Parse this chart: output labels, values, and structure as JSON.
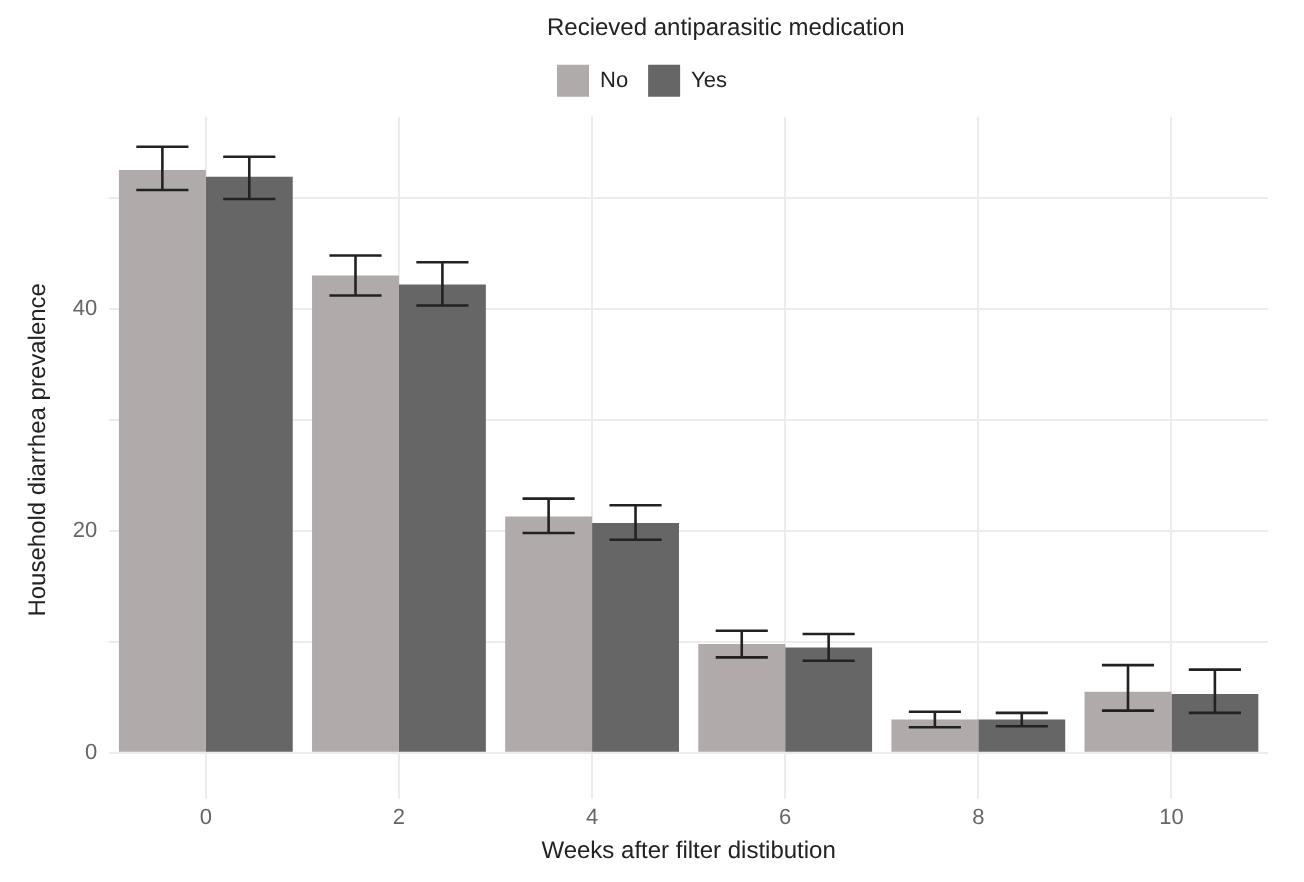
{
  "chart_data": {
    "type": "bar",
    "xlabel": "Weeks after filter distibution",
    "ylabel": "Household diarrhea prevalence",
    "legend_title": "Recieved antiparasitic medication",
    "legend": "top",
    "categories": [
      "0",
      "2",
      "4",
      "6",
      "8",
      "10"
    ],
    "series": [
      {
        "name": "No",
        "color": "#b0aaaa",
        "values": [
          52.5,
          43.0,
          21.3,
          9.8,
          3.0,
          5.5
        ],
        "errors": [
          [
            50.7,
            54.6
          ],
          [
            41.2,
            44.8
          ],
          [
            19.8,
            22.9
          ],
          [
            8.6,
            11.0
          ],
          [
            2.3,
            3.7
          ],
          [
            3.8,
            7.9
          ]
        ]
      },
      {
        "name": "Yes",
        "color": "#666666",
        "values": [
          51.9,
          42.2,
          20.7,
          9.5,
          3.0,
          5.3
        ],
        "errors": [
          [
            49.9,
            53.7
          ],
          [
            40.3,
            44.2
          ],
          [
            19.2,
            22.3
          ],
          [
            8.3,
            10.7
          ],
          [
            2.4,
            3.6
          ],
          [
            3.6,
            7.5
          ]
        ]
      }
    ],
    "ylim": [
      -2.7,
      57.3
    ],
    "yticks": [
      0,
      {
        "value": 10,
        "label": null
      },
      20,
      {
        "value": 30,
        "label": null
      },
      40,
      {
        "value": 50,
        "label": null
      }
    ],
    "grid": true
  }
}
